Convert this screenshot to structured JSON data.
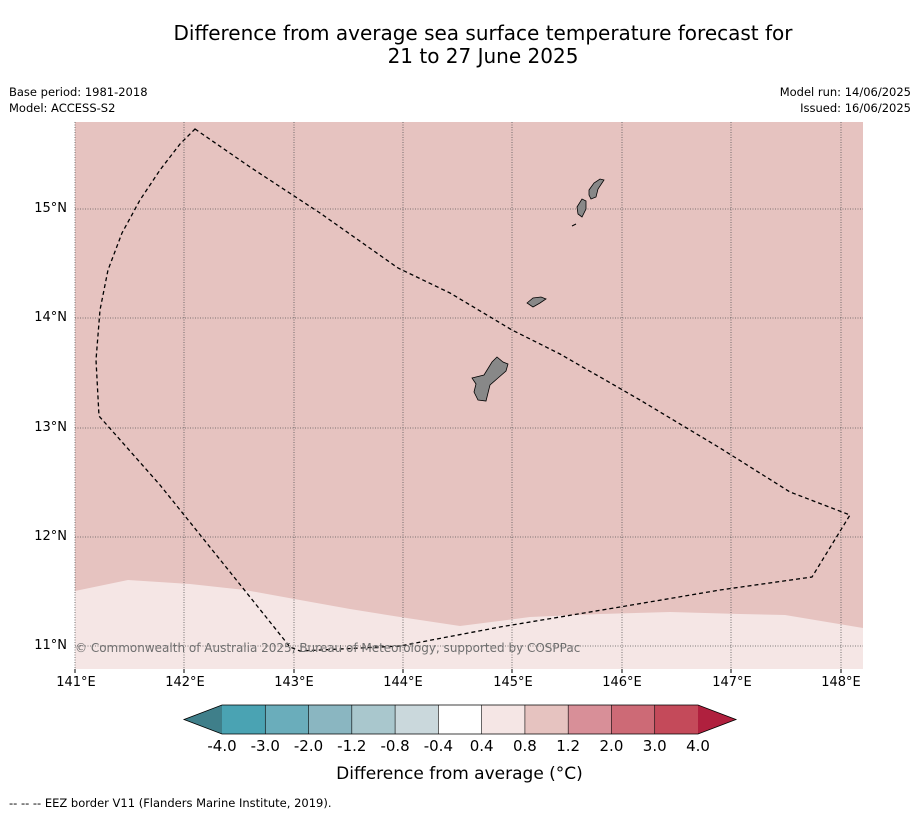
{
  "map": {
    "title_line1": "Difference from average sea surface temperature forecast for",
    "title_line2": "21 to 27 June 2025",
    "base_period": "Base period: 1981-2018",
    "model": "Model: ACCESS-S2",
    "model_run": "Model run: 14/06/2025",
    "issued": "Issued: 16/06/2025",
    "lat_labels": [
      "15°N",
      "14°N",
      "13°N",
      "12°N",
      "11°N"
    ],
    "lon_labels": [
      "141°E",
      "142°E",
      "143°E",
      "144°E",
      "145°E",
      "146°E",
      "147°E",
      "148°E"
    ],
    "copyright": "© Commonwealth of Australia 2025, Bureau of Meteorology, supported by COSPPac",
    "footer": "--  --  -- EEZ border V11 (Flanders Marine Institute, 2019).",
    "colorbar": {
      "label": "Difference from average (°C)",
      "ticks": [
        "-4.0",
        "-3.0",
        "-2.0",
        "-1.2",
        "-0.8",
        "-0.4",
        "0.4",
        "0.8",
        "1.2",
        "2.0",
        "3.0",
        "4.0"
      ],
      "colors": [
        "#3f7f8a",
        "#4aa3b3",
        "#6aadbb",
        "#8ab6c1",
        "#a9c7cd",
        "#cad8dc",
        "#ffffff",
        "#f5e6e5",
        "#e6c3c0",
        "#d88f98",
        "#cd6a76",
        "#c44a5a",
        "#b0203e"
      ]
    },
    "fills": {
      "band_04_08": "#f5e6e5",
      "band_08_12": "#e6c3c0"
    },
    "land_color": "#888888"
  }
}
